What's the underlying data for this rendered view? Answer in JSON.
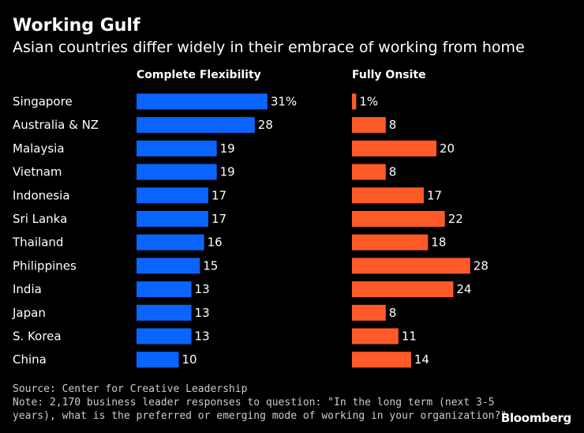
{
  "header": {
    "title": "Working Gulf",
    "subtitle": "Asian countries differ widely in their embrace of working from home"
  },
  "columns": {
    "flex_header": "Complete Flexibility",
    "onsite_header": "Fully Onsite"
  },
  "colors": {
    "flex": "#0a64ff",
    "onsite": "#ff5a28"
  },
  "chart_data": {
    "type": "bar",
    "orientation": "horizontal",
    "categories": [
      "Singapore",
      "Australia & NZ",
      "Malaysia",
      "Vietnam",
      "Indonesia",
      "Sri Lanka",
      "Thailand",
      "Philippines",
      "India",
      "Japan",
      "S. Korea",
      "China"
    ],
    "series": [
      {
        "name": "Complete Flexibility",
        "values": [
          31,
          28,
          19,
          19,
          17,
          17,
          16,
          15,
          13,
          13,
          13,
          10
        ],
        "labels": [
          "31%",
          "28",
          "19",
          "19",
          "17",
          "17",
          "16",
          "15",
          "13",
          "13",
          "13",
          "10"
        ]
      },
      {
        "name": "Fully Onsite",
        "values": [
          1,
          8,
          20,
          8,
          17,
          22,
          18,
          28,
          24,
          8,
          11,
          14
        ],
        "labels": [
          "1%",
          "8",
          "20",
          "8",
          "17",
          "22",
          "18",
          "28",
          "24",
          "8",
          "11",
          "14"
        ]
      }
    ],
    "title": "Working Gulf",
    "unit": "%"
  },
  "footer": {
    "source": "Source: Center for Creative Leadership",
    "note_line1": "Note: 2,170 business leader responses to question: \"In the long term (next 3-5",
    "note_line2": "years), what is the preferred or emerging mode of working in your organization?\"",
    "brand": "Bloomberg"
  }
}
